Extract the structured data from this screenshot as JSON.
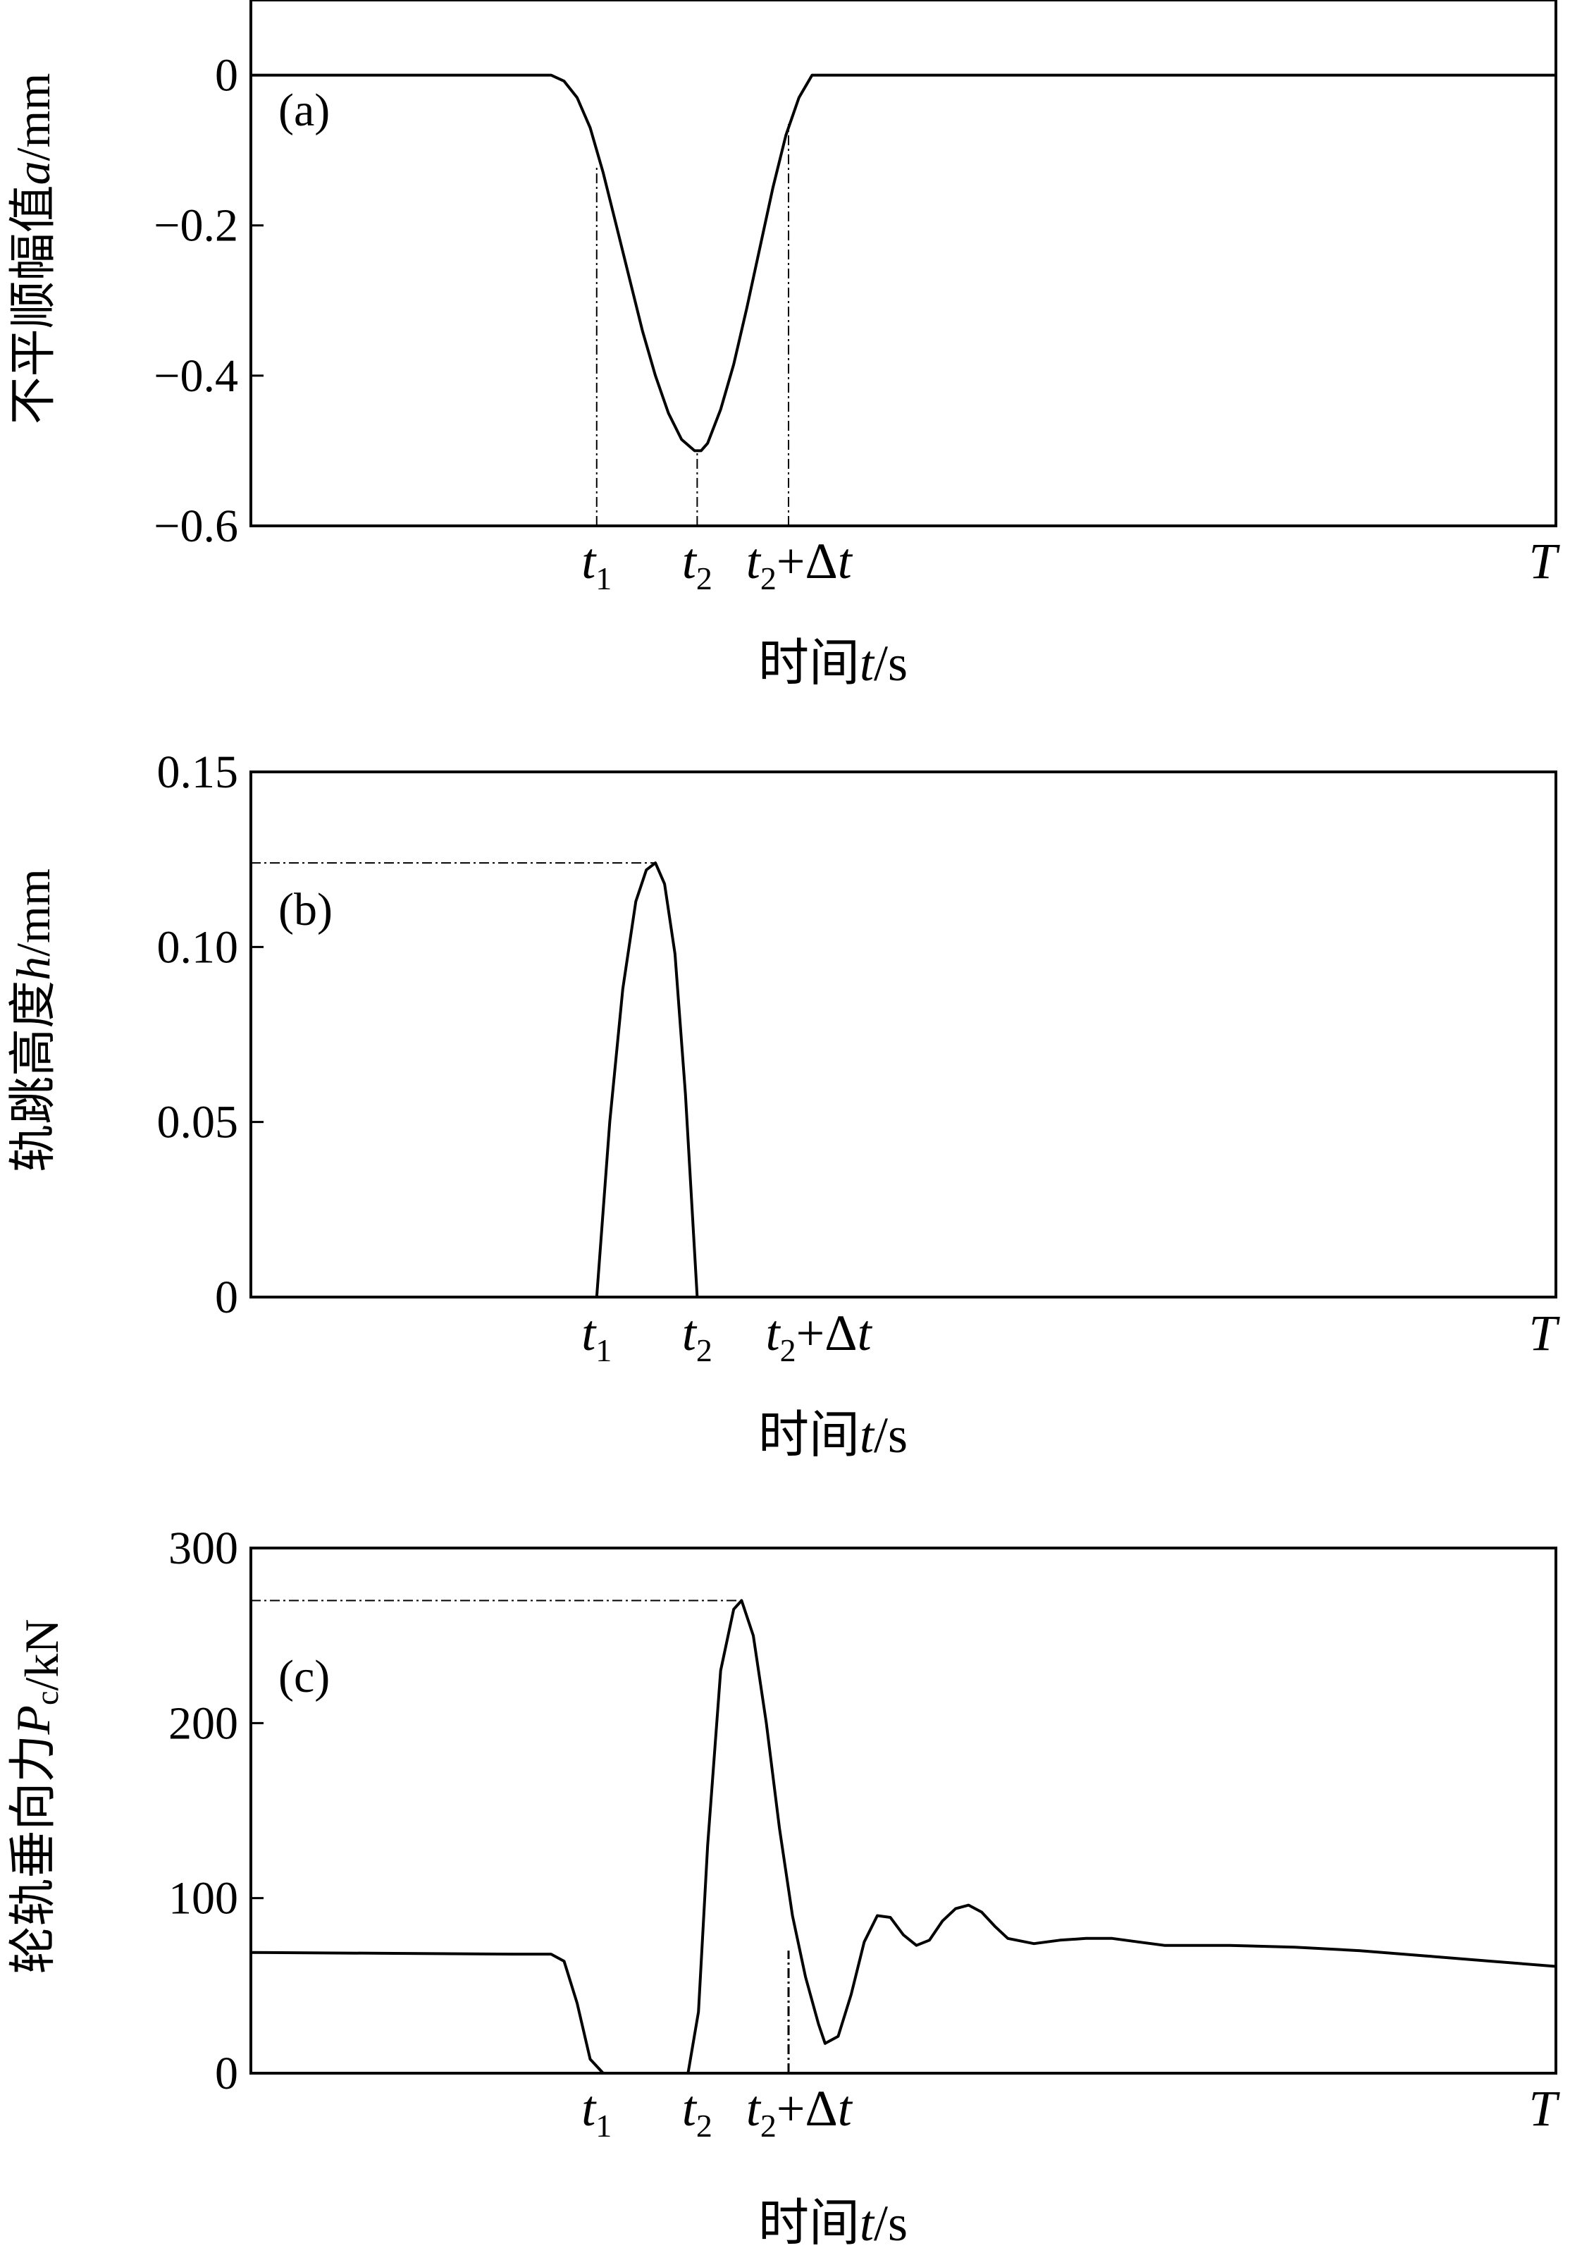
{
  "chart_data": [
    {
      "id": "a",
      "type": "line",
      "panel_label": "(a)",
      "ylabel": "不平顺幅值a/mm",
      "ylabel_parts": [
        {
          "t": "不平顺幅值"
        },
        {
          "t": "a",
          "i": true
        },
        {
          "t": "/mm"
        }
      ],
      "xlabel_parts": [
        {
          "t": "时间"
        },
        {
          "t": "t",
          "i": true
        },
        {
          "t": "/s"
        }
      ],
      "xlim": [
        0,
        1
      ],
      "ylim": [
        -0.6,
        0.1
      ],
      "yticks": [
        {
          "v": 0,
          "label": "0"
        },
        {
          "v": -0.2,
          "label": "−0.2"
        },
        {
          "v": -0.4,
          "label": "−0.4"
        },
        {
          "v": -0.6,
          "label": "−0.6"
        }
      ],
      "xticks": [
        {
          "v": 0.265,
          "base": "t",
          "sub": "1"
        },
        {
          "v": 0.342,
          "base": "t",
          "sub": "2"
        },
        {
          "v": 0.42,
          "base": "t",
          "sub": "2",
          "tail": "+Δt"
        },
        {
          "v": 0.99,
          "base": "T"
        }
      ],
      "guides": [
        {
          "x": 0.265,
          "y0": -0.6,
          "y1": -0.12
        },
        {
          "x": 0.342,
          "y0": -0.6,
          "y1": -0.5
        },
        {
          "x": 0.412,
          "y0": -0.6,
          "y1": -0.065
        }
      ],
      "x": [
        0,
        0.23,
        0.24,
        0.25,
        0.26,
        0.27,
        0.28,
        0.29,
        0.3,
        0.31,
        0.32,
        0.33,
        0.34,
        0.345,
        0.35,
        0.36,
        0.37,
        0.38,
        0.39,
        0.4,
        0.41,
        0.42,
        0.43,
        1.0
      ],
      "y": [
        0,
        0,
        -0.008,
        -0.03,
        -0.07,
        -0.13,
        -0.2,
        -0.27,
        -0.34,
        -0.4,
        -0.45,
        -0.485,
        -0.5,
        -0.5,
        -0.49,
        -0.445,
        -0.385,
        -0.31,
        -0.23,
        -0.15,
        -0.08,
        -0.03,
        0,
        0
      ]
    },
    {
      "id": "b",
      "type": "line",
      "panel_label": "(b)",
      "ylabel": "轨跳高度h/mm",
      "ylabel_parts": [
        {
          "t": "轨跳高度"
        },
        {
          "t": "h",
          "i": true
        },
        {
          "t": "/mm"
        }
      ],
      "xlabel_parts": [
        {
          "t": "时间"
        },
        {
          "t": "t",
          "i": true
        },
        {
          "t": "/s"
        }
      ],
      "xlim": [
        0,
        1
      ],
      "ylim": [
        0,
        0.15
      ],
      "yticks": [
        {
          "v": 0,
          "label": "0"
        },
        {
          "v": 0.05,
          "label": "0.05"
        },
        {
          "v": 0.1,
          "label": "0.10"
        },
        {
          "v": 0.15,
          "label": "0.15"
        }
      ],
      "xticks": [
        {
          "v": 0.265,
          "base": "t",
          "sub": "1"
        },
        {
          "v": 0.342,
          "base": "t",
          "sub": "2"
        },
        {
          "v": 0.435,
          "base": "t",
          "sub": "2",
          "tail": "+Δt"
        },
        {
          "v": 0.99,
          "base": "T"
        }
      ],
      "guides": [
        {
          "x0": 0,
          "x1": 0.31,
          "y": 0.124
        }
      ],
      "x": [
        0.265,
        0.275,
        0.285,
        0.295,
        0.303,
        0.31,
        0.317,
        0.325,
        0.333,
        0.342
      ],
      "y": [
        0,
        0.05,
        0.088,
        0.113,
        0.122,
        0.124,
        0.118,
        0.098,
        0.058,
        0
      ]
    },
    {
      "id": "c",
      "type": "line",
      "panel_label": "(c)",
      "ylabel": "轮轨垂向力Pc/kN",
      "ylabel_parts": [
        {
          "t": "轮轨垂向力"
        },
        {
          "t": "P",
          "i": true
        },
        {
          "t": "c",
          "sub": true
        },
        {
          "t": "/kN"
        }
      ],
      "xlabel_parts": [
        {
          "t": "时间"
        },
        {
          "t": "t",
          "i": true
        },
        {
          "t": "/s"
        }
      ],
      "xlim": [
        0,
        1
      ],
      "ylim": [
        0,
        300
      ],
      "yticks": [
        {
          "v": 0,
          "label": "0"
        },
        {
          "v": 100,
          "label": "100"
        },
        {
          "v": 200,
          "label": "200"
        },
        {
          "v": 300,
          "label": "300"
        }
      ],
      "xticks": [
        {
          "v": 0.265,
          "base": "t",
          "sub": "1"
        },
        {
          "v": 0.342,
          "base": "t",
          "sub": "2"
        },
        {
          "v": 0.42,
          "base": "t",
          "sub": "2",
          "tail": "+Δt"
        },
        {
          "v": 0.99,
          "base": "T"
        }
      ],
      "guides": [
        {
          "x0": 0,
          "x1": 0.376,
          "y": 270
        },
        {
          "x": 0.412,
          "y0": 0,
          "y1": 70,
          "strong": true
        }
      ],
      "x": [
        0,
        0.1,
        0.2,
        0.23,
        0.24,
        0.25,
        0.26,
        0.27,
        0.28,
        0.335,
        0.343,
        0.35,
        0.36,
        0.37,
        0.376,
        0.385,
        0.395,
        0.405,
        0.415,
        0.425,
        0.435,
        0.44,
        0.45,
        0.46,
        0.47,
        0.48,
        0.49,
        0.5,
        0.51,
        0.52,
        0.53,
        0.54,
        0.55,
        0.56,
        0.57,
        0.58,
        0.6,
        0.62,
        0.64,
        0.66,
        0.68,
        0.7,
        0.75,
        0.8,
        0.85,
        0.9,
        0.95,
        1.0
      ],
      "y": [
        69,
        68.5,
        68,
        68,
        64,
        40,
        8,
        0,
        0,
        0,
        35,
        130,
        230,
        265,
        270,
        250,
        200,
        140,
        90,
        55,
        28,
        17,
        21,
        45,
        75,
        90,
        89,
        79,
        73,
        76,
        87,
        94,
        96,
        92,
        84,
        77,
        74,
        76,
        77,
        77,
        75,
        73,
        73,
        72,
        70,
        67,
        64,
        61
      ]
    }
  ]
}
